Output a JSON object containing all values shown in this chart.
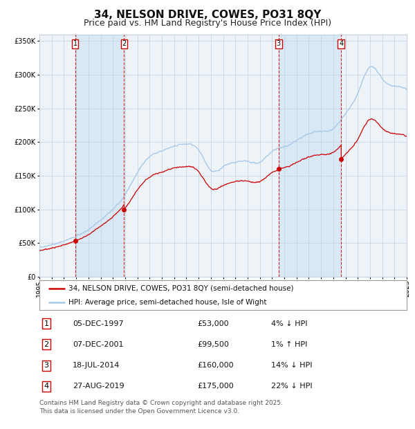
{
  "title": "34, NELSON DRIVE, COWES, PO31 8QY",
  "subtitle": "Price paid vs. HM Land Registry's House Price Index (HPI)",
  "legend_property": "34, NELSON DRIVE, COWES, PO31 8QY (semi-detached house)",
  "legend_hpi": "HPI: Average price, semi-detached house, Isle of Wight",
  "footer": "Contains HM Land Registry data © Crown copyright and database right 2025.\nThis data is licensed under the Open Government Licence v3.0.",
  "purchases": [
    {
      "label": "1",
      "date": "05-DEC-1997",
      "price": 53000,
      "hpi_diff": "4% ↓ HPI",
      "year": 1997.92
    },
    {
      "label": "2",
      "date": "07-DEC-2001",
      "price": 99500,
      "hpi_diff": "1% ↑ HPI",
      "year": 2001.92
    },
    {
      "label": "3",
      "date": "18-JUL-2014",
      "price": 160000,
      "hpi_diff": "14% ↓ HPI",
      "year": 2014.54
    },
    {
      "label": "4",
      "date": "27-AUG-2019",
      "price": 175000,
      "hpi_diff": "22% ↓ HPI",
      "year": 2019.65
    }
  ],
  "property_color": "#cc0000",
  "hpi_color": "#a8c8e8",
  "background_color": "#eef3f8",
  "shaded_color": "#d8e8f4",
  "vline_color": "#cc0000",
  "grid_color": "#c0d0e0",
  "ylim": [
    0,
    360000
  ],
  "yticks": [
    0,
    50000,
    100000,
    150000,
    200000,
    250000,
    300000,
    350000
  ],
  "start_year": 1995,
  "end_year": 2025,
  "title_fontsize": 11,
  "subtitle_fontsize": 9,
  "axis_fontsize": 7,
  "legend_fontsize": 7.5,
  "table_fontsize": 8,
  "footer_fontsize": 6.5,
  "hpi_key_years": [
    1995,
    1996,
    1997,
    1998,
    1999,
    2000,
    2001,
    2002,
    2003,
    2004,
    2005,
    2006,
    2007,
    2008,
    2009,
    2010,
    2011,
    2012,
    2013,
    2014,
    2015,
    2016,
    2017,
    2018,
    2019,
    2020,
    2021,
    2022,
    2023,
    2024,
    2025
  ],
  "hpi_key_vals": [
    44000,
    47500,
    53000,
    60000,
    70000,
    84000,
    100000,
    122000,
    155000,
    178000,
    187000,
    194000,
    197000,
    188000,
    158000,
    163000,
    170000,
    171000,
    170000,
    186000,
    193000,
    202000,
    212000,
    216000,
    220000,
    242000,
    272000,
    312000,
    294000,
    283000,
    278000
  ]
}
